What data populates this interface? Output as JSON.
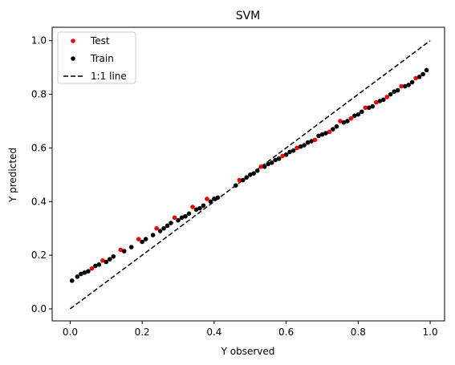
{
  "chart_data": {
    "type": "scatter",
    "title": "SVM",
    "xlabel": "Y observed",
    "ylabel": "Y predicted",
    "xlim": [
      -0.05,
      1.04
    ],
    "ylim": [
      -0.045,
      1.05
    ],
    "xticks": [
      "0.0",
      "0.2",
      "0.4",
      "0.6",
      "0.8",
      "1.0"
    ],
    "yticks": [
      "0.0",
      "0.2",
      "0.4",
      "0.6",
      "0.8",
      "1.0"
    ],
    "grid": false,
    "legend_position": "top-left",
    "series": [
      {
        "name": "Test",
        "color": "#ff0000",
        "marker": "dot",
        "x": [
          0.06,
          0.09,
          0.14,
          0.19,
          0.24,
          0.29,
          0.34,
          0.38,
          0.47,
          0.53,
          0.59,
          0.63,
          0.68,
          0.72,
          0.75,
          0.78,
          0.82,
          0.85,
          0.88,
          0.92,
          0.96
        ],
        "y": [
          0.15,
          0.18,
          0.22,
          0.26,
          0.3,
          0.34,
          0.38,
          0.41,
          0.48,
          0.53,
          0.57,
          0.6,
          0.63,
          0.66,
          0.7,
          0.71,
          0.75,
          0.77,
          0.79,
          0.83,
          0.86
        ]
      },
      {
        "name": "Train",
        "color": "#000000",
        "marker": "dot",
        "x": [
          0.005,
          0.02,
          0.03,
          0.04,
          0.05,
          0.07,
          0.08,
          0.1,
          0.11,
          0.12,
          0.15,
          0.17,
          0.2,
          0.21,
          0.23,
          0.25,
          0.26,
          0.27,
          0.28,
          0.3,
          0.31,
          0.32,
          0.33,
          0.35,
          0.36,
          0.37,
          0.39,
          0.4,
          0.41,
          0.46,
          0.48,
          0.49,
          0.5,
          0.51,
          0.52,
          0.54,
          0.55,
          0.56,
          0.57,
          0.58,
          0.6,
          0.61,
          0.62,
          0.64,
          0.65,
          0.66,
          0.67,
          0.69,
          0.7,
          0.71,
          0.73,
          0.74,
          0.76,
          0.77,
          0.79,
          0.8,
          0.81,
          0.83,
          0.84,
          0.86,
          0.87,
          0.89,
          0.9,
          0.91,
          0.93,
          0.94,
          0.95,
          0.97,
          0.98,
          0.99
        ],
        "y": [
          0.105,
          0.12,
          0.13,
          0.135,
          0.14,
          0.16,
          0.165,
          0.175,
          0.185,
          0.195,
          0.215,
          0.23,
          0.25,
          0.26,
          0.275,
          0.29,
          0.3,
          0.31,
          0.32,
          0.33,
          0.34,
          0.345,
          0.355,
          0.37,
          0.375,
          0.385,
          0.4,
          0.41,
          0.415,
          0.46,
          0.48,
          0.49,
          0.5,
          0.505,
          0.515,
          0.53,
          0.54,
          0.545,
          0.555,
          0.56,
          0.575,
          0.585,
          0.59,
          0.605,
          0.61,
          0.62,
          0.625,
          0.645,
          0.65,
          0.655,
          0.67,
          0.68,
          0.695,
          0.7,
          0.72,
          0.725,
          0.735,
          0.75,
          0.755,
          0.775,
          0.78,
          0.8,
          0.81,
          0.815,
          0.83,
          0.835,
          0.845,
          0.865,
          0.875,
          0.89
        ]
      },
      {
        "name": "1:1 line",
        "color": "#000000",
        "style": "dashed",
        "x": [
          0.0,
          1.0
        ],
        "y": [
          0.0,
          1.0
        ]
      }
    ]
  }
}
